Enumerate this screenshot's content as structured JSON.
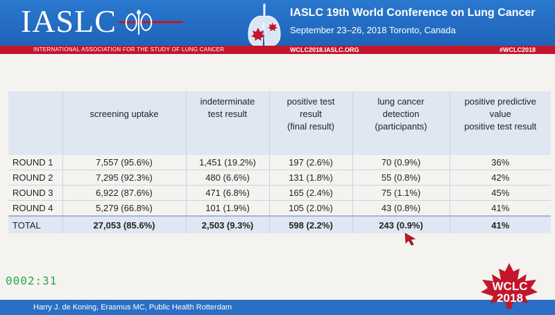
{
  "header": {
    "logo": "IASLC",
    "conference_title": "IASLC 19th World Conference on Lung Cancer",
    "dates_location": "September 23–26, 2018  Toronto, Canada",
    "association": "INTERNATIONAL ASSOCIATION FOR THE STUDY OF LUNG CANCER",
    "url": "WCLC2018.IASLC.ORG",
    "hashtag": "#WCLC2018",
    "brand_blue": "#1e63b8",
    "brand_red": "#c3162b"
  },
  "table": {
    "columns": [
      {
        "lines": [
          ""
        ]
      },
      {
        "lines": [
          "screening uptake"
        ]
      },
      {
        "lines": [
          "indeterminate",
          "test result"
        ]
      },
      {
        "lines": [
          "positive test",
          "result",
          "(final result)"
        ]
      },
      {
        "lines": [
          "lung cancer",
          "detection",
          "(participants)"
        ]
      },
      {
        "lines": [
          "positive predictive",
          "value",
          "positive test result"
        ]
      }
    ],
    "rows": [
      [
        "ROUND 1",
        "7,557 (95.6%)",
        "1,451 (19.2%)",
        "197 (2.6%)",
        "70 (0.9%)",
        "36%"
      ],
      [
        "ROUND 2",
        "7,295 (92.3%)",
        "480 (6.6%)",
        "131 (1.8%)",
        "55 (0.8%)",
        "42%"
      ],
      [
        "ROUND 3",
        "6,922 (87.6%)",
        "471 (6.8%)",
        "165 (2.4%)",
        "75 (1.1%)",
        "45%"
      ],
      [
        "ROUND 4",
        "5,279 (66.8%)",
        "101 (1.9%)",
        "105 (2.0%)",
        "43 (0.8%)",
        "41%"
      ]
    ],
    "total": [
      "TOTAL",
      "27,053 (85.6%)",
      "2,503 (9.3%)",
      "598 (2.2%)",
      "243 (0.9%)",
      "41%"
    ]
  },
  "counter": "0002:31",
  "footer": {
    "author": "Harry J. de Koning, Erasmus MC, Public Health Rotterdam",
    "badge_line1": "WCLC",
    "badge_line2": "2018"
  }
}
